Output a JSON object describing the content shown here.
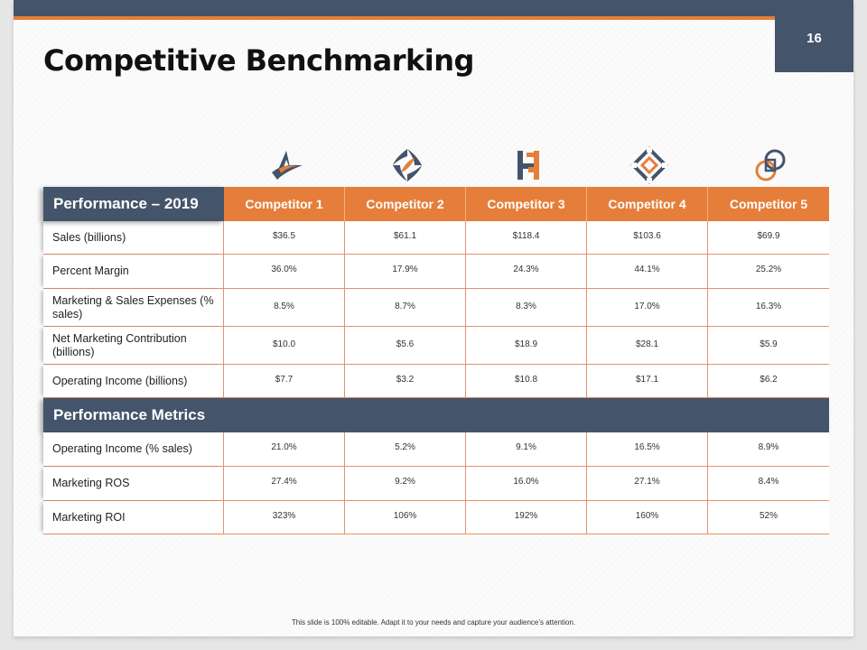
{
  "slide": {
    "title": "Competitive Benchmarking",
    "page_number": "16",
    "footer": "This slide is 100% editable. Adapt it to your needs and capture your audience’s attention."
  },
  "icons": [
    "triangle-swoosh-logo-icon",
    "diamond-leaf-logo-icon",
    "h-bracket-logo-icon",
    "diamond-knot-logo-icon",
    "linked-circle-square-logo-icon"
  ],
  "colors": {
    "navy": "#44546a",
    "orange": "#e57e3a"
  },
  "table": {
    "header": {
      "first": "Performance – 2019",
      "competitors": [
        "Competitor 1",
        "Competitor 2",
        "Competitor 3",
        "Competitor 4",
        "Competitor 5"
      ]
    },
    "rows1": [
      {
        "label": "Sales (billions)",
        "values": [
          "$36.5",
          "$61.1",
          "$118.4",
          "$103.6",
          "$69.9"
        ]
      },
      {
        "label": "Percent Margin",
        "values": [
          "36.0%",
          "17.9%",
          "24.3%",
          "44.1%",
          "25.2%"
        ]
      },
      {
        "label": "Marketing & Sales Expenses (% sales)",
        "values": [
          "8.5%",
          "8.7%",
          "8.3%",
          "17.0%",
          "16.3%"
        ]
      },
      {
        "label": "Net Marketing Contribution (billions)",
        "values": [
          "$10.0",
          "$5.6",
          "$18.9",
          "$28.1",
          "$5.9"
        ]
      },
      {
        "label": "Operating Income (billions)",
        "values": [
          "$7.7",
          "$3.2",
          "$10.8",
          "$17.1",
          "$6.2"
        ]
      }
    ],
    "section_label": "Performance Metrics",
    "rows2": [
      {
        "label": "Operating Income (% sales)",
        "values": [
          "21.0%",
          "5.2%",
          "9.1%",
          "16.5%",
          "8.9%"
        ]
      },
      {
        "label": "Marketing ROS",
        "values": [
          "27.4%",
          "9.2%",
          "16.0%",
          "27.1%",
          "8.4%"
        ]
      },
      {
        "label": "Marketing ROI",
        "values": [
          "323%",
          "106%",
          "192%",
          "160%",
          "52%"
        ]
      }
    ]
  }
}
